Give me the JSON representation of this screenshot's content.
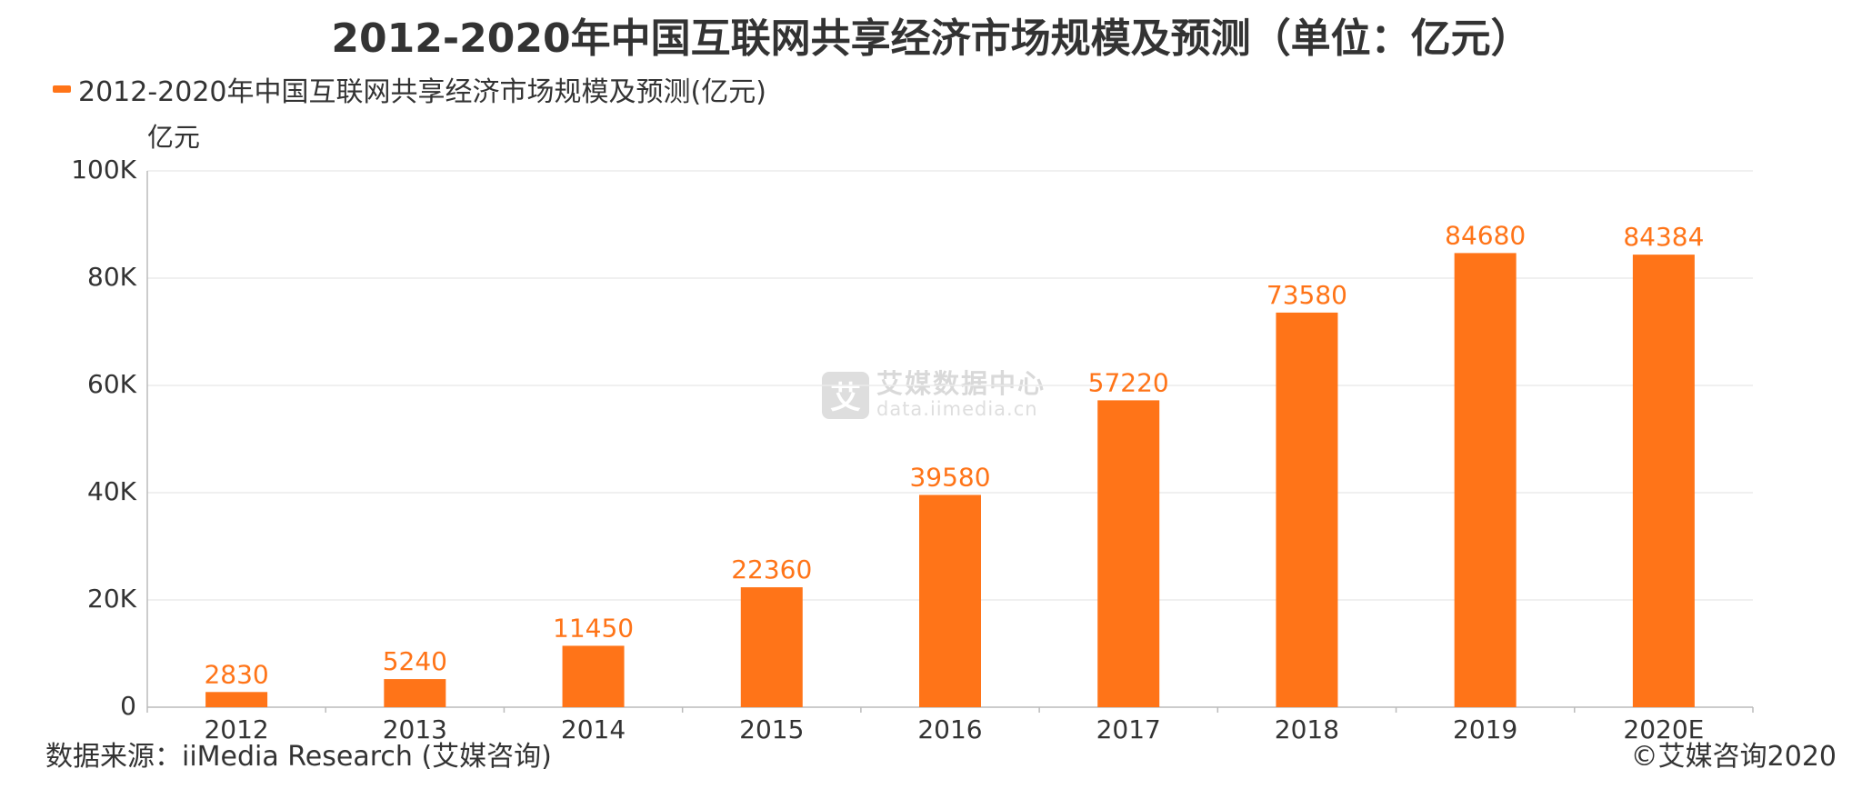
{
  "title": "2012-2020年中国互联网共享经济市场规模及预测（单位：亿元）",
  "legend": {
    "label": "2012-2020年中国互联网共享经济市场规模及预测(亿元)",
    "color": "#FF7418"
  },
  "watermark": {
    "logo_char": "艾",
    "name": "艾媒数据中心",
    "url": "data.iimedia.cn"
  },
  "footer": {
    "source": "数据来源：iiMedia Research (艾媒咨询)",
    "copyright": "©艾媒咨询2020"
  },
  "colors": {
    "bar": "#FF7418",
    "value_label": "#FF7418",
    "grid": "#ECECEC",
    "axis": "#BBBBBB",
    "text": "#333333"
  },
  "chart_data": {
    "type": "bar",
    "title": "2012-2020年中国互联网共享经济市场规模及预测（单位：亿元）",
    "xlabel": "",
    "ylabel": "亿元",
    "categories": [
      "2012",
      "2013",
      "2014",
      "2015",
      "2016",
      "2017",
      "2018",
      "2019",
      "2020E"
    ],
    "series": [
      {
        "name": "2012-2020年中国互联网共享经济市场规模及预测(亿元)",
        "values": [
          2830,
          5240,
          11450,
          22360,
          39580,
          57220,
          73580,
          84680,
          84384
        ]
      }
    ],
    "ylim": [
      0,
      100000
    ],
    "yticks": [
      0,
      20000,
      40000,
      60000,
      80000,
      100000
    ],
    "ytick_labels": [
      "0",
      "20K",
      "40K",
      "60K",
      "80K",
      "100K"
    ],
    "grid": true,
    "legend_position": "top-left",
    "data_labels": true
  }
}
